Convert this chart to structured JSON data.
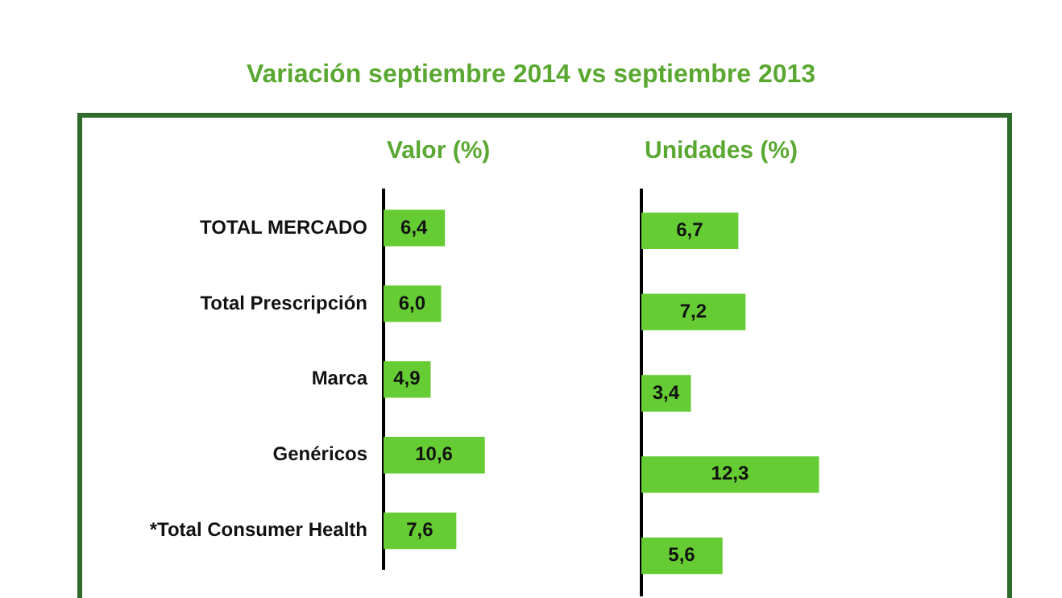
{
  "chart_data": [
    {
      "type": "bar",
      "orientation": "horizontal",
      "title": "Variación septiembre 2014 vs septiembre 2013",
      "subtitle": "Valor (%)",
      "categories": [
        "TOTAL MERCADO",
        "Total Prescripción",
        "Marca",
        "Genéricos",
        "*Total Consumer Health"
      ],
      "values": [
        6.4,
        6.0,
        4.9,
        10.6,
        7.6
      ],
      "value_labels": [
        "6,4",
        "6,0",
        "4,9",
        "10,6",
        "7,6"
      ],
      "color": "#66cc33",
      "grid": false,
      "legend": false,
      "tick_labels": "y"
    },
    {
      "type": "bar",
      "orientation": "horizontal",
      "subtitle": "Unidades (%)",
      "categories": [
        null,
        null,
        null,
        null,
        null
      ],
      "values": [
        6.7,
        7.2,
        3.4,
        12.3,
        5.6
      ],
      "value_labels": [
        "6,7",
        "7,2",
        "3,4",
        "12,3",
        "5,6"
      ],
      "color": "#66cc33",
      "grid": false,
      "legend": false,
      "tick_labels": false
    }
  ]
}
